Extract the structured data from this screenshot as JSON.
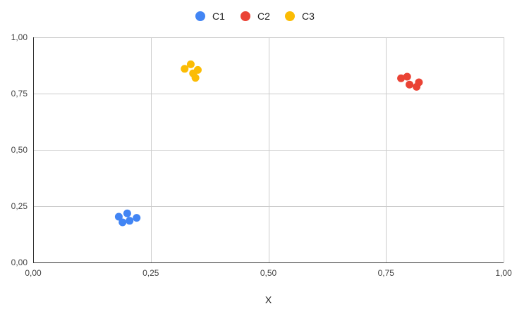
{
  "chart_data": {
    "type": "scatter",
    "title": "",
    "xlabel": "X",
    "ylabel": "",
    "xlim": [
      0,
      1
    ],
    "ylim": [
      0,
      1
    ],
    "x_ticks": [
      "0,00",
      "0,25",
      "0,50",
      "0,75",
      "1,00"
    ],
    "y_ticks": [
      "0,00",
      "0,25",
      "0,50",
      "0,75",
      "1,00"
    ],
    "grid": true,
    "legend_position": "top",
    "series": [
      {
        "name": "C1",
        "color": "#4285F4",
        "points": [
          {
            "x": 0.182,
            "y": 0.203
          },
          {
            "x": 0.19,
            "y": 0.178
          },
          {
            "x": 0.2,
            "y": 0.218
          },
          {
            "x": 0.205,
            "y": 0.185
          },
          {
            "x": 0.22,
            "y": 0.198
          }
        ]
      },
      {
        "name": "C2",
        "color": "#EA4335",
        "points": [
          {
            "x": 0.782,
            "y": 0.818
          },
          {
            "x": 0.795,
            "y": 0.825
          },
          {
            "x": 0.8,
            "y": 0.79
          },
          {
            "x": 0.815,
            "y": 0.78
          },
          {
            "x": 0.82,
            "y": 0.8
          }
        ]
      },
      {
        "name": "C3",
        "color": "#FBBC04",
        "points": [
          {
            "x": 0.322,
            "y": 0.86
          },
          {
            "x": 0.335,
            "y": 0.88
          },
          {
            "x": 0.34,
            "y": 0.84
          },
          {
            "x": 0.345,
            "y": 0.82
          },
          {
            "x": 0.35,
            "y": 0.855
          }
        ]
      }
    ]
  }
}
